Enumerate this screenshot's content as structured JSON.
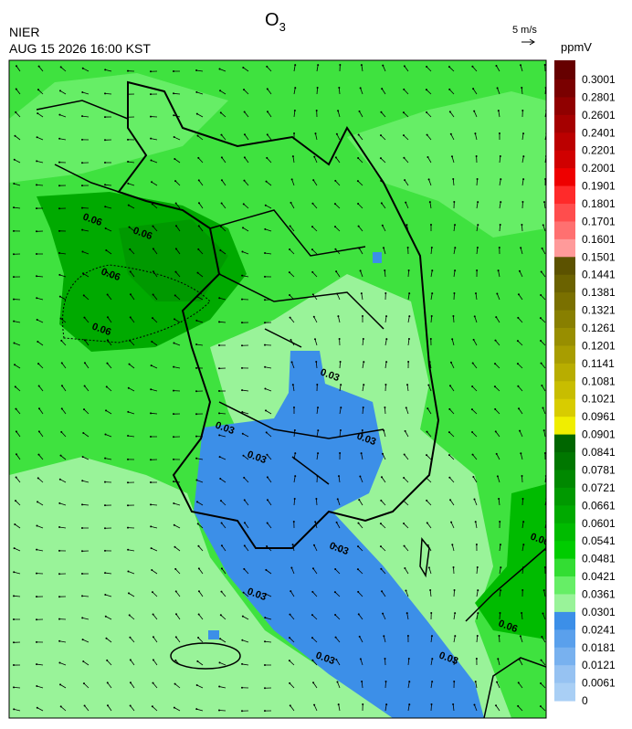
{
  "header": {
    "agency": "NIER",
    "datetime": "AUG 15 2026 16:00 KST",
    "title": {
      "main": "O",
      "subscript": "3"
    },
    "wind_scale": "5 m/s"
  },
  "colorbar": {
    "unit": "ppmV",
    "ticks": [
      0.3001,
      0.2801,
      0.2601,
      0.2401,
      0.2201,
      0.2001,
      0.1901,
      0.1801,
      0.1701,
      0.1601,
      0.1501,
      0.1441,
      0.1381,
      0.1321,
      0.1261,
      0.1201,
      0.1141,
      0.1081,
      0.1021,
      0.0961,
      0.0901,
      0.0841,
      0.0781,
      0.0721,
      0.0661,
      0.0601,
      0.0541,
      0.0481,
      0.0421,
      0.0361,
      0.0301,
      0.0241,
      0.0181,
      0.0121,
      0.0061,
      0
    ],
    "colors": [
      "#660000",
      "#7a0000",
      "#900000",
      "#a50000",
      "#bb0000",
      "#d00000",
      "#ee0000",
      "#ff2a2a",
      "#ff4d4d",
      "#ff7070",
      "#ff9a9a",
      "#5c5200",
      "#6b6200",
      "#7a7000",
      "#887f00",
      "#988e00",
      "#a89d00",
      "#b8ad00",
      "#c8bd00",
      "#d8cc00",
      "#f0ee00",
      "#006600",
      "#007700",
      "#008800",
      "#009900",
      "#00aa00",
      "#00bb00",
      "#00cc00",
      "#33dd33",
      "#66ee66",
      "#99f399",
      "#3c8fe8",
      "#5aa0ec",
      "#78b1ef",
      "#96c2f2",
      "#a9cff5"
    ]
  },
  "map": {
    "contour_labels": [
      "0.06",
      "0.06",
      "0.06",
      "0.06",
      "0.03",
      "0.03",
      "0.03",
      "0.03",
      "0.03",
      "0.03",
      "0.03",
      "0.03",
      "0.06",
      "0.06"
    ]
  }
}
